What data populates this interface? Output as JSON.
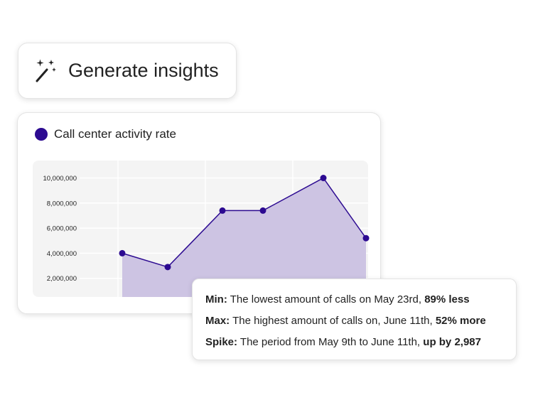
{
  "generate_button": {
    "label": "Generate insights",
    "icon": "magic-wand-icon"
  },
  "chart_card": {
    "legend_label": "Call center activity rate",
    "legend_color": "#2c0a91"
  },
  "chart_data": {
    "type": "area",
    "series": [
      {
        "name": "Call center activity rate",
        "values": [
          4000000,
          2900000,
          7400000,
          7400000,
          10000000,
          5200000
        ]
      }
    ],
    "y_ticks": [
      "10,000,000",
      "8,000,000",
      "6,000,000",
      "4,000,000",
      "2,000,000"
    ],
    "y_tick_values": [
      10000000,
      8000000,
      6000000,
      4000000,
      2000000
    ],
    "ylim": [
      0,
      11000000
    ],
    "grid": true,
    "line_color": "#2c0a91",
    "fill_color": "#cdc4e3",
    "background": "#f4f4f4"
  },
  "insights": [
    {
      "label": "Min:",
      "text": " The lowest amount of calls on May 23rd, ",
      "emph": "89% less"
    },
    {
      "label": "Max:",
      "text": " The highest amount of calls on, June 11th, ",
      "emph": "52% more"
    },
    {
      "label": "Spike:",
      "text": " The period from May 9th to June 11th, ",
      "emph": "up by 2,987"
    }
  ]
}
